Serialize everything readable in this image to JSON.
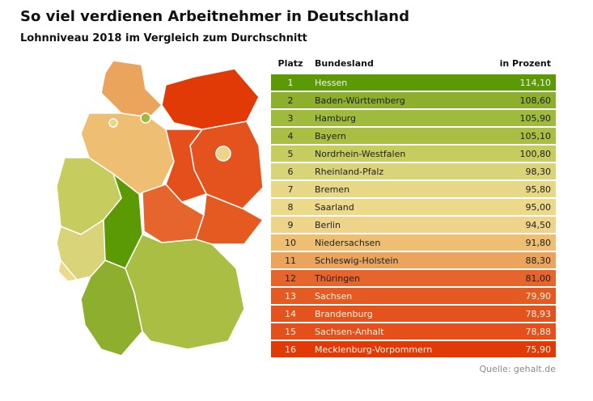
{
  "chart_data": {
    "type": "table",
    "title": "So viel verdienen Arbeitnehmer in Deutschland",
    "subtitle": "Lohnniveau 2018 im Vergleich zum Durchschnitt",
    "columns": [
      "Platz",
      "Bundesland",
      "in Prozent"
    ],
    "rows": [
      {
        "rank": "1",
        "state": "Hessen",
        "value": "114,10",
        "color": "#5c9a05",
        "light": true
      },
      {
        "rank": "2",
        "state": "Baden-Württemberg",
        "value": "108,60",
        "color": "#8eae2e",
        "light": false
      },
      {
        "rank": "3",
        "state": "Hamburg",
        "value": "105,90",
        "color": "#9fba3c",
        "light": false
      },
      {
        "rank": "4",
        "state": "Bayern",
        "value": "105,10",
        "color": "#a9be42",
        "light": false
      },
      {
        "rank": "5",
        "state": "Nordrhein-Westfalen",
        "value": "100,80",
        "color": "#c6cc5e",
        "light": false
      },
      {
        "rank": "6",
        "state": "Rheinland-Pfalz",
        "value": "98,30",
        "color": "#d9d37a",
        "light": false
      },
      {
        "rank": "7",
        "state": "Bremen",
        "value": "95,80",
        "color": "#e6d886",
        "light": false
      },
      {
        "rank": "8",
        "state": "Saarland",
        "value": "95,00",
        "color": "#ecd98a",
        "light": false
      },
      {
        "rank": "9",
        "state": "Berlin",
        "value": "94,50",
        "color": "#eed48a",
        "light": false
      },
      {
        "rank": "10",
        "state": "Niedersachsen",
        "value": "91,80",
        "color": "#eebf72",
        "light": false
      },
      {
        "rank": "11",
        "state": "Schleswig-Holstein",
        "value": "88,30",
        "color": "#eba45c",
        "light": false
      },
      {
        "rank": "12",
        "state": "Thüringen",
        "value": "81,00",
        "color": "#e5652c",
        "light": false
      },
      {
        "rank": "13",
        "state": "Sachsen",
        "value": "79,90",
        "color": "#e45a20",
        "light": true
      },
      {
        "rank": "14",
        "state": "Brandenburg",
        "value": "78,93",
        "color": "#e4531e",
        "light": true
      },
      {
        "rank": "15",
        "state": "Sachsen-Anhalt",
        "value": "78,88",
        "color": "#e44f1c",
        "light": true
      },
      {
        "rank": "16",
        "state": "Mecklenburg-Vorpommern",
        "value": "75,90",
        "color": "#e23a06",
        "light": true
      }
    ]
  },
  "source": "Quelle: gehalt.de"
}
